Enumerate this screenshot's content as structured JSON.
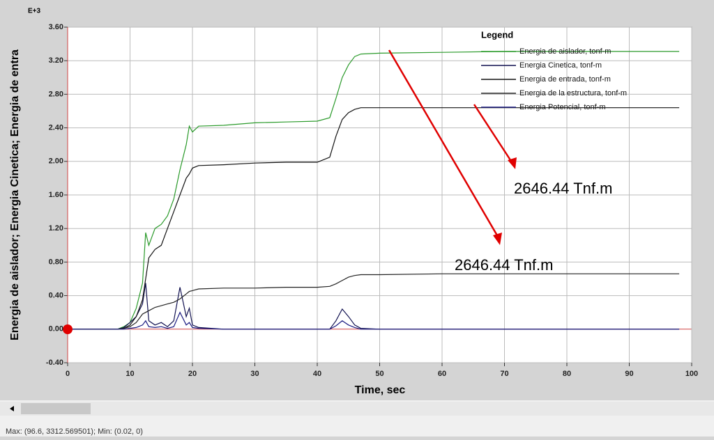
{
  "chart_data": {
    "type": "line",
    "y_label": "Energia  de aislador; Energia Cinetica; Energia de entra",
    "x_label": "Time,  sec",
    "y_multiplier": "E+3",
    "legend_title": "Legend",
    "annotations": [
      "2646.44 Tnf.m",
      "2646.44 Tnf.m"
    ],
    "status": "Max: (96.6, 3312.569501);  Min: (0.02, 0)",
    "xlim": [
      0,
      100
    ],
    "xticks": [
      0,
      10,
      20,
      30,
      40,
      50,
      60,
      70,
      80,
      90,
      100
    ],
    "ylim": [
      -0.4,
      3.6
    ],
    "yticks": [
      {
        "value": -0.4,
        "label": "-0.40"
      },
      {
        "value": 0,
        "label": "0.00"
      },
      {
        "value": 0.4,
        "label": "0.40"
      },
      {
        "value": 0.8,
        "label": "0.80"
      },
      {
        "value": 1.2,
        "label": "1.20"
      },
      {
        "value": 1.6,
        "label": "1.60"
      },
      {
        "value": 2,
        "label": "2.00"
      },
      {
        "value": 2.4,
        "label": "2.40"
      },
      {
        "value": 2.8,
        "label": "2.80"
      },
      {
        "value": 3.2,
        "label": "3.20"
      },
      {
        "value": 3.6,
        "label": "3.60"
      }
    ],
    "grid": true,
    "x": [
      0,
      8,
      9,
      10,
      11,
      12,
      12.5,
      13,
      14,
      15,
      16,
      17,
      18,
      19,
      19.5,
      20,
      21,
      25,
      30,
      35,
      40,
      42,
      43,
      44,
      45,
      46,
      47,
      50,
      60,
      70,
      80,
      90,
      98
    ],
    "series": [
      {
        "name": "Energia  de aislador, tonf-m",
        "color": "#2a9a2a",
        "values": [
          0,
          0,
          0.03,
          0.08,
          0.25,
          0.55,
          1.15,
          1.0,
          1.2,
          1.25,
          1.35,
          1.55,
          1.9,
          2.2,
          2.42,
          2.35,
          2.42,
          2.43,
          2.46,
          2.47,
          2.48,
          2.52,
          2.75,
          3.0,
          3.15,
          3.25,
          3.28,
          3.29,
          3.3,
          3.31,
          3.31,
          3.31,
          3.31
        ]
      },
      {
        "name": "Energia Cinetica, tonf-m",
        "color": "#101050",
        "values": [
          0,
          0,
          0.02,
          0.08,
          0.15,
          0.3,
          0.55,
          0.1,
          0.05,
          0.08,
          0.03,
          0.1,
          0.5,
          0.15,
          0.25,
          0.05,
          0.02,
          0,
          0,
          0,
          0,
          0,
          0.1,
          0.24,
          0.15,
          0.05,
          0.01,
          0,
          0,
          0,
          0,
          0,
          0
        ]
      },
      {
        "name": "Energia de entrada, tonf-m",
        "color": "#111111",
        "values": [
          0,
          0,
          0.01,
          0.05,
          0.15,
          0.35,
          0.6,
          0.85,
          0.95,
          1.0,
          1.2,
          1.4,
          1.6,
          1.8,
          1.85,
          1.92,
          1.95,
          1.96,
          1.98,
          1.99,
          1.99,
          2.05,
          2.3,
          2.5,
          2.58,
          2.62,
          2.64,
          2.64,
          2.64,
          2.64,
          2.64,
          2.64,
          2.64
        ]
      },
      {
        "name": "Energia de la estructura, tonf-m",
        "color": "#222222",
        "values": [
          0,
          0,
          0.01,
          0.03,
          0.08,
          0.18,
          0.2,
          0.22,
          0.26,
          0.28,
          0.3,
          0.32,
          0.36,
          0.42,
          0.45,
          0.46,
          0.48,
          0.49,
          0.49,
          0.5,
          0.5,
          0.51,
          0.54,
          0.58,
          0.62,
          0.64,
          0.65,
          0.65,
          0.66,
          0.66,
          0.66,
          0.66,
          0.66
        ]
      },
      {
        "name": "Energia Potencial, tonf-m",
        "color": "#1a1a80",
        "values": [
          0,
          0,
          0,
          0.01,
          0.02,
          0.05,
          0.1,
          0.03,
          0.02,
          0.03,
          0.01,
          0.03,
          0.2,
          0.05,
          0.08,
          0.02,
          0.01,
          0,
          0,
          0,
          0,
          0,
          0.04,
          0.1,
          0.05,
          0.02,
          0,
          0,
          0,
          0,
          0,
          0,
          0
        ]
      }
    ]
  }
}
